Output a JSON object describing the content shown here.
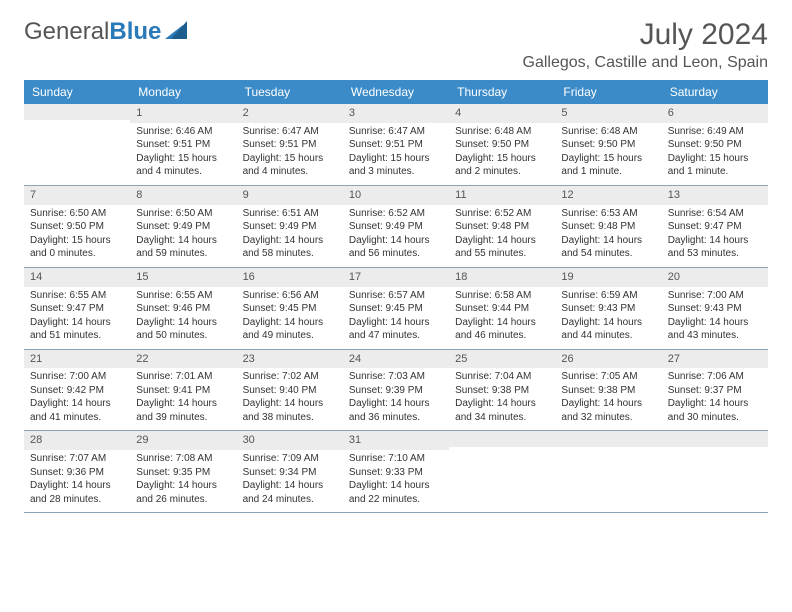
{
  "logo": {
    "text1": "General",
    "text2": "Blue"
  },
  "title": "July 2024",
  "location": "Gallegos, Castille and Leon, Spain",
  "colors": {
    "header_bg": "#3b8bc9",
    "header_text": "#ffffff",
    "daynum_bg": "#ececec",
    "border": "#8aa5b8",
    "text": "#333333"
  },
  "day_names": [
    "Sunday",
    "Monday",
    "Tuesday",
    "Wednesday",
    "Thursday",
    "Friday",
    "Saturday"
  ],
  "weeks": [
    [
      {
        "n": "",
        "sr": "",
        "ss": "",
        "dl": ""
      },
      {
        "n": "1",
        "sr": "Sunrise: 6:46 AM",
        "ss": "Sunset: 9:51 PM",
        "dl": "Daylight: 15 hours and 4 minutes."
      },
      {
        "n": "2",
        "sr": "Sunrise: 6:47 AM",
        "ss": "Sunset: 9:51 PM",
        "dl": "Daylight: 15 hours and 4 minutes."
      },
      {
        "n": "3",
        "sr": "Sunrise: 6:47 AM",
        "ss": "Sunset: 9:51 PM",
        "dl": "Daylight: 15 hours and 3 minutes."
      },
      {
        "n": "4",
        "sr": "Sunrise: 6:48 AM",
        "ss": "Sunset: 9:50 PM",
        "dl": "Daylight: 15 hours and 2 minutes."
      },
      {
        "n": "5",
        "sr": "Sunrise: 6:48 AM",
        "ss": "Sunset: 9:50 PM",
        "dl": "Daylight: 15 hours and 1 minute."
      },
      {
        "n": "6",
        "sr": "Sunrise: 6:49 AM",
        "ss": "Sunset: 9:50 PM",
        "dl": "Daylight: 15 hours and 1 minute."
      }
    ],
    [
      {
        "n": "7",
        "sr": "Sunrise: 6:50 AM",
        "ss": "Sunset: 9:50 PM",
        "dl": "Daylight: 15 hours and 0 minutes."
      },
      {
        "n": "8",
        "sr": "Sunrise: 6:50 AM",
        "ss": "Sunset: 9:49 PM",
        "dl": "Daylight: 14 hours and 59 minutes."
      },
      {
        "n": "9",
        "sr": "Sunrise: 6:51 AM",
        "ss": "Sunset: 9:49 PM",
        "dl": "Daylight: 14 hours and 58 minutes."
      },
      {
        "n": "10",
        "sr": "Sunrise: 6:52 AM",
        "ss": "Sunset: 9:49 PM",
        "dl": "Daylight: 14 hours and 56 minutes."
      },
      {
        "n": "11",
        "sr": "Sunrise: 6:52 AM",
        "ss": "Sunset: 9:48 PM",
        "dl": "Daylight: 14 hours and 55 minutes."
      },
      {
        "n": "12",
        "sr": "Sunrise: 6:53 AM",
        "ss": "Sunset: 9:48 PM",
        "dl": "Daylight: 14 hours and 54 minutes."
      },
      {
        "n": "13",
        "sr": "Sunrise: 6:54 AM",
        "ss": "Sunset: 9:47 PM",
        "dl": "Daylight: 14 hours and 53 minutes."
      }
    ],
    [
      {
        "n": "14",
        "sr": "Sunrise: 6:55 AM",
        "ss": "Sunset: 9:47 PM",
        "dl": "Daylight: 14 hours and 51 minutes."
      },
      {
        "n": "15",
        "sr": "Sunrise: 6:55 AM",
        "ss": "Sunset: 9:46 PM",
        "dl": "Daylight: 14 hours and 50 minutes."
      },
      {
        "n": "16",
        "sr": "Sunrise: 6:56 AM",
        "ss": "Sunset: 9:45 PM",
        "dl": "Daylight: 14 hours and 49 minutes."
      },
      {
        "n": "17",
        "sr": "Sunrise: 6:57 AM",
        "ss": "Sunset: 9:45 PM",
        "dl": "Daylight: 14 hours and 47 minutes."
      },
      {
        "n": "18",
        "sr": "Sunrise: 6:58 AM",
        "ss": "Sunset: 9:44 PM",
        "dl": "Daylight: 14 hours and 46 minutes."
      },
      {
        "n": "19",
        "sr": "Sunrise: 6:59 AM",
        "ss": "Sunset: 9:43 PM",
        "dl": "Daylight: 14 hours and 44 minutes."
      },
      {
        "n": "20",
        "sr": "Sunrise: 7:00 AM",
        "ss": "Sunset: 9:43 PM",
        "dl": "Daylight: 14 hours and 43 minutes."
      }
    ],
    [
      {
        "n": "21",
        "sr": "Sunrise: 7:00 AM",
        "ss": "Sunset: 9:42 PM",
        "dl": "Daylight: 14 hours and 41 minutes."
      },
      {
        "n": "22",
        "sr": "Sunrise: 7:01 AM",
        "ss": "Sunset: 9:41 PM",
        "dl": "Daylight: 14 hours and 39 minutes."
      },
      {
        "n": "23",
        "sr": "Sunrise: 7:02 AM",
        "ss": "Sunset: 9:40 PM",
        "dl": "Daylight: 14 hours and 38 minutes."
      },
      {
        "n": "24",
        "sr": "Sunrise: 7:03 AM",
        "ss": "Sunset: 9:39 PM",
        "dl": "Daylight: 14 hours and 36 minutes."
      },
      {
        "n": "25",
        "sr": "Sunrise: 7:04 AM",
        "ss": "Sunset: 9:38 PM",
        "dl": "Daylight: 14 hours and 34 minutes."
      },
      {
        "n": "26",
        "sr": "Sunrise: 7:05 AM",
        "ss": "Sunset: 9:38 PM",
        "dl": "Daylight: 14 hours and 32 minutes."
      },
      {
        "n": "27",
        "sr": "Sunrise: 7:06 AM",
        "ss": "Sunset: 9:37 PM",
        "dl": "Daylight: 14 hours and 30 minutes."
      }
    ],
    [
      {
        "n": "28",
        "sr": "Sunrise: 7:07 AM",
        "ss": "Sunset: 9:36 PM",
        "dl": "Daylight: 14 hours and 28 minutes."
      },
      {
        "n": "29",
        "sr": "Sunrise: 7:08 AM",
        "ss": "Sunset: 9:35 PM",
        "dl": "Daylight: 14 hours and 26 minutes."
      },
      {
        "n": "30",
        "sr": "Sunrise: 7:09 AM",
        "ss": "Sunset: 9:34 PM",
        "dl": "Daylight: 14 hours and 24 minutes."
      },
      {
        "n": "31",
        "sr": "Sunrise: 7:10 AM",
        "ss": "Sunset: 9:33 PM",
        "dl": "Daylight: 14 hours and 22 minutes."
      },
      {
        "n": "",
        "sr": "",
        "ss": "",
        "dl": ""
      },
      {
        "n": "",
        "sr": "",
        "ss": "",
        "dl": ""
      },
      {
        "n": "",
        "sr": "",
        "ss": "",
        "dl": ""
      }
    ]
  ]
}
